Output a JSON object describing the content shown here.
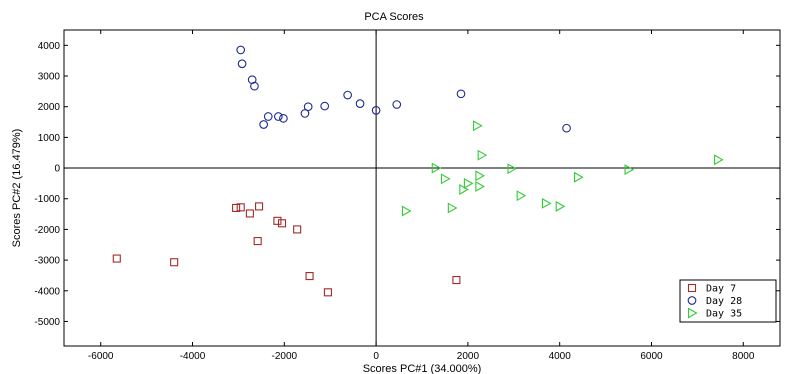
{
  "chart_data": {
    "type": "scatter",
    "title": "PCA Scores",
    "xlabel": "Scores PC#1 (34.000%)",
    "ylabel": "Scores PC#2 (16.479%)",
    "xlim": [
      -6800,
      8800
    ],
    "ylim": [
      -5800,
      4500
    ],
    "xticks": [
      -6000,
      -4000,
      -2000,
      0,
      2000,
      4000,
      6000,
      8000
    ],
    "yticks": [
      -5000,
      -4000,
      -3000,
      -2000,
      -1000,
      0,
      1000,
      2000,
      3000,
      4000
    ],
    "grid": false,
    "zero_lines": true,
    "legend_position": "bottom-right",
    "series": [
      {
        "name": "Day 7",
        "marker": "square",
        "color": "#a52a2a",
        "points": [
          [
            -5650,
            -2950
          ],
          [
            -4400,
            -3070
          ],
          [
            -3050,
            -1300
          ],
          [
            -2950,
            -1280
          ],
          [
            -2750,
            -1480
          ],
          [
            -2550,
            -1250
          ],
          [
            -2580,
            -2380
          ],
          [
            -2150,
            -1720
          ],
          [
            -2050,
            -1800
          ],
          [
            -1720,
            -2000
          ],
          [
            -1450,
            -3520
          ],
          [
            -1050,
            -4050
          ],
          [
            1750,
            -3650
          ]
        ]
      },
      {
        "name": "Day 28",
        "marker": "circle",
        "color": "#1f2a8f",
        "points": [
          [
            -2950,
            3850
          ],
          [
            -2920,
            3400
          ],
          [
            -2700,
            2880
          ],
          [
            -2650,
            2670
          ],
          [
            -2450,
            1420
          ],
          [
            -2350,
            1680
          ],
          [
            -2130,
            1680
          ],
          [
            -2020,
            1620
          ],
          [
            -1550,
            1780
          ],
          [
            -1480,
            2000
          ],
          [
            -1120,
            2020
          ],
          [
            -620,
            2380
          ],
          [
            -350,
            2100
          ],
          [
            0,
            1880
          ],
          [
            450,
            2070
          ],
          [
            1850,
            2420
          ],
          [
            4150,
            1300
          ]
        ]
      },
      {
        "name": "Day 35",
        "marker": "triangle-right",
        "color": "#33cc33",
        "points": [
          [
            650,
            -1400
          ],
          [
            1300,
            0
          ],
          [
            1500,
            -350
          ],
          [
            1650,
            -1300
          ],
          [
            1900,
            -700
          ],
          [
            2000,
            -500
          ],
          [
            2200,
            1380
          ],
          [
            2250,
            -600
          ],
          [
            2250,
            -250
          ],
          [
            2300,
            420
          ],
          [
            2950,
            -20
          ],
          [
            3150,
            -900
          ],
          [
            3700,
            -1150
          ],
          [
            4000,
            -1250
          ],
          [
            4400,
            -300
          ],
          [
            5500,
            -50
          ],
          [
            7450,
            270
          ]
        ]
      }
    ]
  }
}
